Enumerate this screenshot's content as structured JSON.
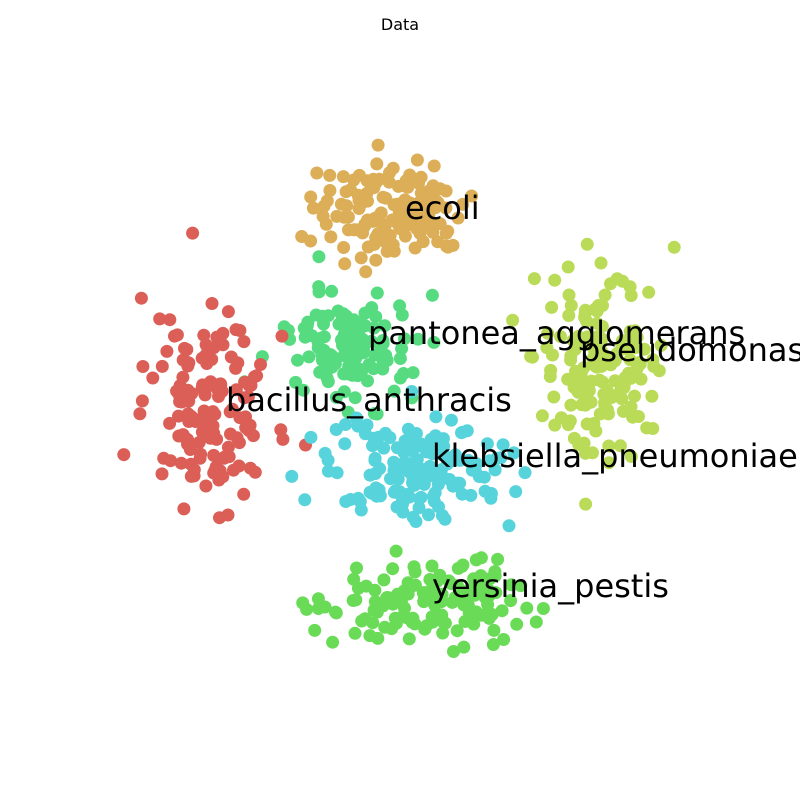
{
  "chart_data": {
    "type": "scatter",
    "title": "Data",
    "xlabel": "",
    "ylabel": "",
    "axes_visible": false,
    "grid": false,
    "legend": "none",
    "series": [
      {
        "name": "ecoli",
        "color": "#dbae57",
        "center": [
          390,
          210
        ],
        "spread": [
          70,
          45
        ],
        "count": 140,
        "label_pos": [
          405,
          210
        ]
      },
      {
        "name": "pantonea_agglomerans",
        "color": "#57db80",
        "center": [
          350,
          350
        ],
        "spread": [
          55,
          50
        ],
        "count": 130,
        "label_pos": [
          368,
          335
        ]
      },
      {
        "name": "pseudomonas_aeruginosa",
        "color": "#b9db57",
        "center": [
          600,
          360
        ],
        "spread": [
          60,
          80
        ],
        "count": 150,
        "label_pos": [
          580,
          352
        ]
      },
      {
        "name": "bacillus_anthracis",
        "color": "#db5f57",
        "center": [
          210,
          410
        ],
        "spread": [
          55,
          80
        ],
        "count": 150,
        "label_pos": [
          226,
          402
        ]
      },
      {
        "name": "klebsiella_pneumoniae",
        "color": "#57d3db",
        "center": [
          420,
          470
        ],
        "spread": [
          80,
          50
        ],
        "count": 160,
        "label_pos": [
          432,
          458
        ]
      },
      {
        "name": "yersinia_pestis",
        "color": "#6adb57",
        "center": [
          420,
          600
        ],
        "spread": [
          95,
          40
        ],
        "count": 140,
        "label_pos": [
          432,
          588
        ]
      }
    ]
  }
}
